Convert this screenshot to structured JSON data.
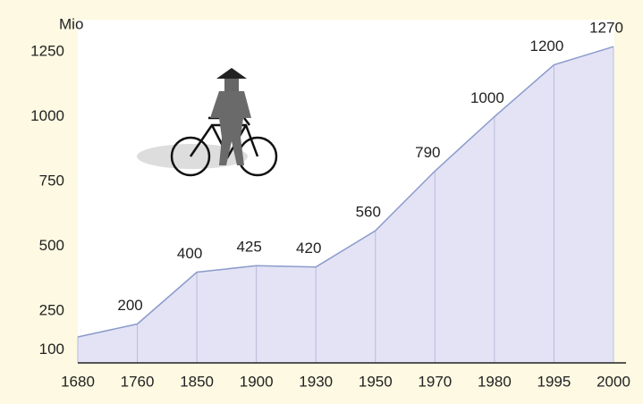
{
  "chart_data": {
    "type": "area",
    "y_label": "Mio",
    "categories": [
      "1680",
      "1760",
      "1850",
      "1900",
      "1930",
      "1950",
      "1970",
      "1980",
      "1995",
      "2000"
    ],
    "values": [
      150,
      200,
      400,
      425,
      420,
      560,
      790,
      1000,
      1200,
      1270
    ],
    "value_labels": [
      null,
      "200",
      "400",
      "425",
      "420",
      "560",
      "790",
      "1000",
      "1200",
      "1270"
    ],
    "color": "#e4e3f6",
    "line_color": "#8b9bcb",
    "ylim": [
      50,
      1350
    ],
    "yticks": [
      100,
      250,
      500,
      750,
      1000,
      1250
    ]
  }
}
